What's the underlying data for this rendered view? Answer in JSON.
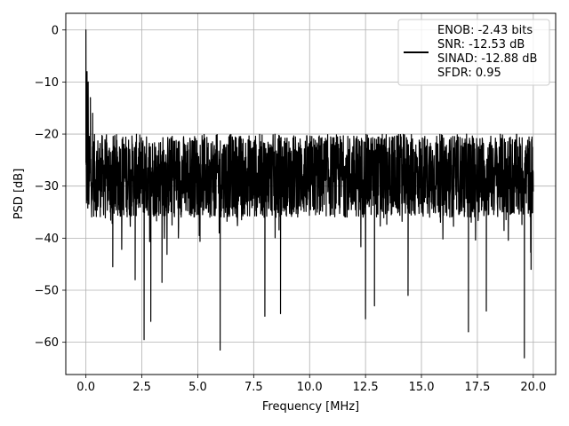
{
  "chart_data": {
    "type": "line",
    "title": "",
    "xlabel": "Frequency [MHz]",
    "ylabel": "PSD [dB]",
    "xlim": [
      -0.9,
      21.0
    ],
    "ylim": [
      -66.2,
      3.2
    ],
    "xticks": [
      0.0,
      2.5,
      5.0,
      7.5,
      10.0,
      12.5,
      15.0,
      17.5,
      20.0
    ],
    "xtick_labels": [
      "0.0",
      "2.5",
      "5.0",
      "7.5",
      "10.0",
      "12.5",
      "15.0",
      "17.5",
      "20.0"
    ],
    "yticks": [
      0,
      -10,
      -20,
      -30,
      -40,
      -50,
      -60
    ],
    "ytick_labels": [
      "0",
      "−10",
      "−20",
      "−30",
      "−40",
      "−50",
      "−60"
    ],
    "grid": true,
    "legend_position": "top-right",
    "series": [
      {
        "color": "#000000",
        "legend_lines": [
          "ENOB: -2.43 bits",
          "SNR: -12.53 dB",
          "SINAD: -12.88 dB",
          "SFDR: 0.95"
        ],
        "x_range": [
          0.0,
          20.0
        ],
        "noise_band": [
          -36,
          -20
        ],
        "peaks": [
          {
            "x": 0.0,
            "y": 0.0
          },
          {
            "x": 0.05,
            "y": -8.0
          },
          {
            "x": 0.1,
            "y": -10.0
          },
          {
            "x": 0.2,
            "y": -13.0
          },
          {
            "x": 0.3,
            "y": -16.0
          }
        ],
        "dips": [
          {
            "x": 1.2,
            "y": -45.5
          },
          {
            "x": 2.2,
            "y": -48.0
          },
          {
            "x": 2.6,
            "y": -59.5
          },
          {
            "x": 2.9,
            "y": -56.0
          },
          {
            "x": 3.4,
            "y": -48.5
          },
          {
            "x": 6.0,
            "y": -61.5
          },
          {
            "x": 8.0,
            "y": -55.0
          },
          {
            "x": 8.7,
            "y": -54.5
          },
          {
            "x": 12.5,
            "y": -55.5
          },
          {
            "x": 12.9,
            "y": -53.0
          },
          {
            "x": 14.4,
            "y": -51.0
          },
          {
            "x": 17.1,
            "y": -58.0
          },
          {
            "x": 17.9,
            "y": -54.0
          },
          {
            "x": 19.6,
            "y": -63.0
          },
          {
            "x": 19.9,
            "y": -46.0
          }
        ]
      }
    ]
  }
}
